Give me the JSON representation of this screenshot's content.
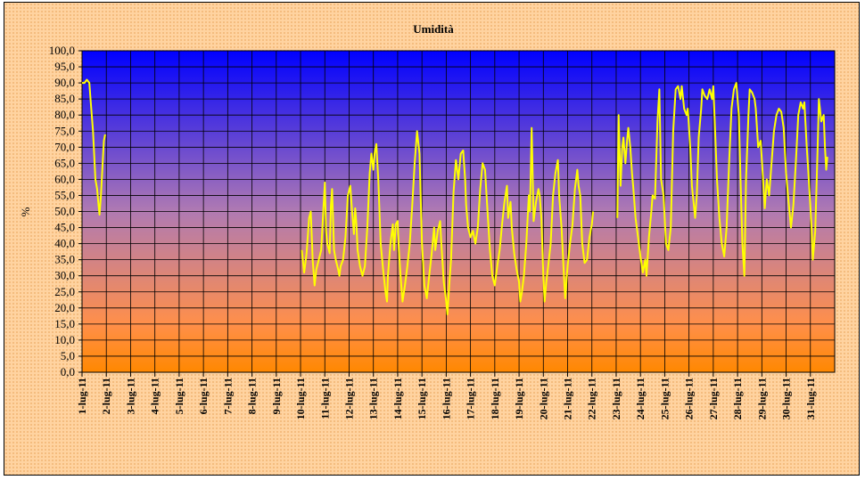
{
  "chart_data": {
    "type": "line",
    "title": "Umidità",
    "ylabel": "%",
    "xlabel": "",
    "ylim": [
      0,
      100
    ],
    "y_ticks": [
      "0,0",
      "5,0",
      "10,0",
      "15,0",
      "20,0",
      "25,0",
      "30,0",
      "35,0",
      "40,0",
      "45,0",
      "50,0",
      "55,0",
      "60,0",
      "65,0",
      "70,0",
      "75,0",
      "80,0",
      "85,0",
      "90,0",
      "95,0",
      "100,0"
    ],
    "x_ticks": [
      "1-lug-11",
      "2-lug-11",
      "3-lug-11",
      "4-lug-11",
      "5-lug-11",
      "6-lug-11",
      "7-lug-11",
      "8-lug-11",
      "9-lug-11",
      "10-lug-11",
      "11-lug-11",
      "12-lug-11",
      "13-lug-11",
      "14-lug-11",
      "15-lug-11",
      "16-lug-11",
      "17-lug-11",
      "18-lug-11",
      "19-lug-11",
      "20-lug-11",
      "21-lug-11",
      "22-lug-11",
      "23-lug-11",
      "24-lug-11",
      "25-lug-11",
      "26-lug-11",
      "27-lug-11",
      "28-lug-11",
      "29-lug-11",
      "30-lug-11",
      "31-lug-11"
    ],
    "grid": true,
    "series": [
      {
        "color": "#ffff00",
        "segments": [
          [
            [
              0.0,
              90
            ],
            [
              0.1,
              90
            ],
            [
              0.2,
              91
            ],
            [
              0.3,
              90
            ],
            [
              0.35,
              85
            ],
            [
              0.45,
              75
            ],
            [
              0.55,
              60
            ],
            [
              0.62,
              57
            ],
            [
              0.68,
              52
            ],
            [
              0.72,
              49
            ],
            [
              0.78,
              55
            ],
            [
              0.85,
              65
            ],
            [
              0.9,
              72
            ],
            [
              0.95,
              74
            ]
          ],
          [
            [
              9.05,
              38
            ],
            [
              9.15,
              31
            ],
            [
              9.25,
              37
            ],
            [
              9.35,
              48
            ],
            [
              9.42,
              50
            ],
            [
              9.5,
              35
            ],
            [
              9.58,
              27
            ],
            [
              9.65,
              32
            ],
            [
              9.75,
              35
            ],
            [
              9.85,
              38
            ],
            [
              9.95,
              52
            ],
            [
              10.0,
              59
            ],
            [
              10.05,
              44
            ],
            [
              10.1,
              40
            ],
            [
              10.2,
              37
            ],
            [
              10.25,
              52
            ],
            [
              10.3,
              57
            ],
            [
              10.38,
              38
            ],
            [
              10.45,
              35
            ],
            [
              10.55,
              32
            ],
            [
              10.6,
              30
            ],
            [
              10.65,
              33
            ],
            [
              10.75,
              35
            ],
            [
              10.85,
              42
            ],
            [
              10.95,
              55
            ],
            [
              11.05,
              58
            ],
            [
              11.12,
              50
            ],
            [
              11.2,
              43
            ],
            [
              11.25,
              51
            ],
            [
              11.3,
              46
            ],
            [
              11.35,
              38
            ],
            [
              11.45,
              33
            ],
            [
              11.55,
              30
            ],
            [
              11.65,
              33
            ],
            [
              11.75,
              45
            ],
            [
              11.85,
              62
            ],
            [
              11.92,
              68
            ],
            [
              12.0,
              63
            ],
            [
              12.05,
              68
            ],
            [
              12.12,
              71
            ],
            [
              12.2,
              60
            ],
            [
              12.3,
              40
            ],
            [
              12.4,
              32
            ],
            [
              12.5,
              25
            ],
            [
              12.56,
              22
            ],
            [
              12.6,
              30
            ],
            [
              12.7,
              40
            ],
            [
              12.8,
              46
            ],
            [
              12.85,
              38
            ],
            [
              12.92,
              46
            ],
            [
              13.0,
              47
            ],
            [
              13.05,
              38
            ],
            [
              13.12,
              30
            ],
            [
              13.2,
              22
            ],
            [
              13.3,
              27
            ],
            [
              13.4,
              33
            ],
            [
              13.5,
              40
            ],
            [
              13.6,
              52
            ],
            [
              13.7,
              65
            ],
            [
              13.8,
              75
            ],
            [
              13.9,
              68
            ],
            [
              14.0,
              40
            ],
            [
              14.1,
              27
            ],
            [
              14.2,
              23
            ],
            [
              14.3,
              30
            ],
            [
              14.4,
              37
            ],
            [
              14.5,
              45
            ],
            [
              14.55,
              38
            ],
            [
              14.65,
              44
            ],
            [
              14.75,
              47
            ],
            [
              14.8,
              40
            ],
            [
              14.9,
              28
            ],
            [
              15.0,
              22
            ],
            [
              15.05,
              18
            ],
            [
              15.12,
              27
            ],
            [
              15.2,
              35
            ],
            [
              15.3,
              56
            ],
            [
              15.4,
              66
            ],
            [
              15.5,
              60
            ],
            [
              15.6,
              68
            ],
            [
              15.7,
              69
            ],
            [
              15.78,
              60
            ],
            [
              15.82,
              52
            ],
            [
              15.9,
              45
            ],
            [
              16.0,
              42
            ],
            [
              16.1,
              44
            ],
            [
              16.2,
              40
            ],
            [
              16.3,
              45
            ],
            [
              16.4,
              57
            ],
            [
              16.5,
              65
            ],
            [
              16.6,
              63
            ],
            [
              16.7,
              50
            ],
            [
              16.8,
              38
            ],
            [
              16.9,
              30
            ],
            [
              17.0,
              27
            ],
            [
              17.1,
              33
            ],
            [
              17.2,
              38
            ],
            [
              17.3,
              46
            ],
            [
              17.4,
              53
            ],
            [
              17.5,
              58
            ],
            [
              17.55,
              48
            ],
            [
              17.65,
              53
            ],
            [
              17.7,
              45
            ],
            [
              17.8,
              37
            ],
            [
              17.9,
              32
            ],
            [
              18.0,
              28
            ],
            [
              18.05,
              22
            ],
            [
              18.12,
              25
            ],
            [
              18.2,
              30
            ],
            [
              18.3,
              40
            ],
            [
              18.4,
              55
            ],
            [
              18.45,
              50
            ],
            [
              18.52,
              76
            ],
            [
              18.6,
              47
            ],
            [
              18.7,
              53
            ],
            [
              18.8,
              57
            ],
            [
              18.85,
              55
            ],
            [
              18.92,
              48
            ],
            [
              19.0,
              30
            ],
            [
              19.05,
              22
            ],
            [
              19.12,
              28
            ],
            [
              19.2,
              33
            ],
            [
              19.3,
              40
            ],
            [
              19.4,
              55
            ],
            [
              19.5,
              62
            ],
            [
              19.6,
              66
            ],
            [
              19.65,
              55
            ],
            [
              19.75,
              45
            ],
            [
              19.85,
              30
            ],
            [
              19.9,
              23
            ],
            [
              20.0,
              33
            ],
            [
              20.1,
              40
            ],
            [
              20.2,
              46
            ],
            [
              20.3,
              57
            ],
            [
              20.4,
              63
            ],
            [
              20.45,
              58
            ],
            [
              20.52,
              55
            ],
            [
              20.6,
              40
            ],
            [
              20.7,
              34
            ],
            [
              20.8,
              35
            ],
            [
              20.9,
              42
            ],
            [
              21.0,
              46
            ],
            [
              21.05,
              50
            ]
          ],
          [
            [
              22.05,
              48
            ],
            [
              22.1,
              80
            ],
            [
              22.18,
              58
            ],
            [
              22.25,
              70
            ],
            [
              22.3,
              73
            ],
            [
              22.38,
              65
            ],
            [
              22.45,
              72
            ],
            [
              22.5,
              76
            ],
            [
              22.58,
              70
            ],
            [
              22.65,
              62
            ],
            [
              22.7,
              58
            ],
            [
              22.8,
              48
            ],
            [
              22.9,
              42
            ],
            [
              23.0,
              36
            ],
            [
              23.1,
              31
            ],
            [
              23.2,
              35
            ],
            [
              23.25,
              30
            ],
            [
              23.35,
              42
            ],
            [
              23.45,
              50
            ],
            [
              23.5,
              55
            ],
            [
              23.6,
              54
            ],
            [
              23.7,
              78
            ],
            [
              23.78,
              88
            ],
            [
              23.85,
              60
            ],
            [
              23.95,
              55
            ],
            [
              24.05,
              40
            ],
            [
              24.15,
              38
            ],
            [
              24.25,
              45
            ],
            [
              24.35,
              75
            ],
            [
              24.45,
              88
            ],
            [
              24.55,
              89
            ],
            [
              24.65,
              85
            ],
            [
              24.7,
              89
            ],
            [
              24.8,
              82
            ],
            [
              24.9,
              80
            ],
            [
              24.95,
              82
            ],
            [
              25.05,
              70
            ],
            [
              25.12,
              58
            ],
            [
              25.2,
              52
            ],
            [
              25.25,
              48
            ],
            [
              25.32,
              55
            ],
            [
              25.4,
              73
            ],
            [
              25.5,
              82
            ],
            [
              25.55,
              88
            ],
            [
              25.65,
              86
            ],
            [
              25.75,
              85
            ],
            [
              25.85,
              88
            ],
            [
              25.95,
              85
            ],
            [
              26.0,
              89
            ],
            [
              26.05,
              80
            ],
            [
              26.15,
              60
            ],
            [
              26.25,
              48
            ],
            [
              26.35,
              40
            ],
            [
              26.45,
              36
            ],
            [
              26.55,
              45
            ],
            [
              26.65,
              65
            ],
            [
              26.75,
              82
            ],
            [
              26.85,
              88
            ],
            [
              26.95,
              90
            ],
            [
              27.05,
              80
            ],
            [
              27.12,
              60
            ],
            [
              27.2,
              40
            ],
            [
              27.28,
              30
            ],
            [
              27.35,
              60
            ],
            [
              27.45,
              80
            ],
            [
              27.5,
              88
            ],
            [
              27.6,
              87
            ],
            [
              27.7,
              85
            ],
            [
              27.75,
              82
            ],
            [
              27.85,
              70
            ],
            [
              27.95,
              72
            ],
            [
              28.05,
              60
            ],
            [
              28.12,
              51
            ],
            [
              28.2,
              60
            ],
            [
              28.3,
              55
            ],
            [
              28.4,
              65
            ],
            [
              28.5,
              75
            ],
            [
              28.6,
              80
            ],
            [
              28.7,
              82
            ],
            [
              28.8,
              81
            ],
            [
              28.9,
              76
            ],
            [
              29.0,
              62
            ],
            [
              29.1,
              53
            ],
            [
              29.2,
              45
            ],
            [
              29.3,
              52
            ],
            [
              29.4,
              65
            ],
            [
              29.5,
              80
            ],
            [
              29.6,
              84
            ],
            [
              29.7,
              82
            ],
            [
              29.75,
              84
            ],
            [
              29.85,
              70
            ],
            [
              29.95,
              58
            ],
            [
              30.05,
              45
            ],
            [
              30.1,
              35
            ],
            [
              30.2,
              44
            ],
            [
              30.3,
              70
            ],
            [
              30.35,
              85
            ],
            [
              30.45,
              78
            ],
            [
              30.55,
              80
            ],
            [
              30.6,
              70
            ],
            [
              30.65,
              63
            ],
            [
              30.7,
              67
            ]
          ]
        ]
      }
    ]
  }
}
